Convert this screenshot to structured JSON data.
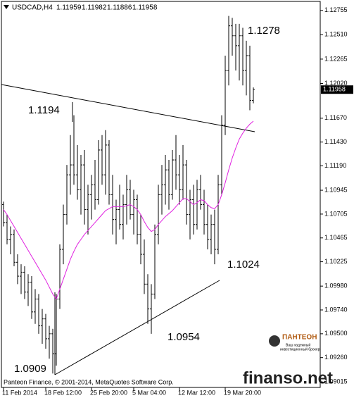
{
  "chart_data": {
    "type": "ohlc",
    "symbol": "USDCAD,H4",
    "quote": [
      1.11959,
      1.11982,
      1.11886,
      1.11958
    ],
    "current_price": 1.11958,
    "copyright": "Panteon Finance, © 2001-2014, MetaQuotes Software Corp.",
    "watermark": "finanso.net",
    "logo": {
      "name": "ПАНТЕОН",
      "tagline": [
        "Ваш надежный",
        "инвестиционный брокер"
      ]
    },
    "annotations": [
      "1.1278",
      "1.1194",
      "1.1024",
      "1.0954",
      "1.0909"
    ],
    "categories": [
      "11 Feb 2014",
      null,
      null,
      null,
      null,
      null,
      null,
      null,
      null,
      null,
      null,
      null,
      "18 Feb 12:00",
      null,
      null,
      null,
      null,
      null,
      null,
      null,
      null,
      null,
      null,
      null,
      null,
      "25 Feb 20:00",
      null,
      null,
      null,
      null,
      null,
      null,
      null,
      null,
      null,
      null,
      null,
      "5 Mar 04:00",
      null,
      null,
      null,
      null,
      null,
      null,
      null,
      null,
      null,
      null,
      null,
      null,
      "12 Mar 12:00",
      null,
      null,
      null,
      null,
      null,
      null,
      null,
      null,
      null,
      null,
      null,
      null,
      "19 Mar 20:00",
      null,
      null,
      null,
      null,
      null,
      null,
      null,
      null
    ],
    "open": [
      1.108,
      1.1062,
      1.1045,
      1.105,
      1.1022,
      1.1008,
      1.1012,
      1.0992,
      1.1002,
      1.0972,
      1.0985,
      1.0958,
      1.0965,
      1.0945,
      1.095,
      1.093,
      1.0985,
      1.1035,
      1.107,
      1.111,
      1.112,
      1.111,
      1.1095,
      1.112,
      1.1075,
      1.109,
      1.11,
      1.1085,
      1.1135,
      1.111,
      1.114,
      1.109,
      1.1065,
      1.1075,
      1.106,
      1.108,
      1.1095,
      1.107,
      1.1085,
      1.105,
      1.103,
      1.1,
      1.0975,
      1.099,
      1.105,
      1.109,
      1.11,
      1.1115,
      1.109,
      1.1125,
      1.111,
      1.1095,
      1.112,
      1.107,
      1.1085,
      1.106,
      1.1095,
      1.108,
      1.106,
      1.1045,
      1.106,
      1.1035,
      1.11,
      1.116,
      1.1215,
      1.126,
      1.125,
      1.124,
      1.125,
      1.1215,
      1.123,
      1.1185
    ],
    "high": [
      1.1083,
      1.107,
      1.1058,
      1.1055,
      1.103,
      1.102,
      1.1018,
      1.101,
      1.1008,
      1.0995,
      1.099,
      1.0975,
      1.097,
      1.0958,
      1.0955,
      1.099,
      1.104,
      1.108,
      1.112,
      1.115,
      1.117,
      1.114,
      1.113,
      1.1135,
      1.11,
      1.111,
      1.1125,
      1.1145,
      1.115,
      1.1155,
      1.1145,
      1.111,
      1.1085,
      1.11,
      1.109,
      1.111,
      1.1105,
      1.1095,
      1.109,
      1.107,
      1.1045,
      1.101,
      1.1,
      1.106,
      1.11,
      1.112,
      1.113,
      1.1125,
      1.1135,
      1.115,
      1.113,
      1.114,
      1.1125,
      1.1095,
      1.11,
      1.1105,
      1.111,
      1.1095,
      1.108,
      1.107,
      1.1075,
      1.111,
      1.117,
      1.123,
      1.127,
      1.1268,
      1.1262,
      1.1262,
      1.1258,
      1.1245,
      1.124,
      1.1198
    ],
    "low": [
      1.1058,
      1.104,
      1.103,
      1.1018,
      1.1,
      1.099,
      1.0985,
      1.0978,
      1.0965,
      1.096,
      1.095,
      1.094,
      1.0935,
      1.0925,
      1.091,
      1.0918,
      1.0975,
      1.102,
      1.106,
      1.109,
      1.11,
      1.1085,
      1.107,
      1.106,
      1.105,
      1.1065,
      1.1075,
      1.108,
      1.11,
      1.109,
      1.108,
      1.105,
      1.104,
      1.1055,
      1.1045,
      1.106,
      1.1065,
      1.105,
      1.104,
      1.102,
      1.099,
      1.096,
      1.095,
      1.0985,
      1.104,
      1.107,
      1.108,
      1.1075,
      1.1085,
      1.1095,
      1.108,
      1.1085,
      1.106,
      1.1045,
      1.105,
      1.1055,
      1.1075,
      1.105,
      1.1035,
      1.103,
      1.102,
      1.103,
      1.109,
      1.115,
      1.12,
      1.123,
      1.1215,
      1.1205,
      1.12,
      1.119,
      1.1175,
      1.1182
    ],
    "close": [
      1.1062,
      1.1045,
      1.105,
      1.1022,
      1.1008,
      1.1012,
      1.0992,
      1.1002,
      1.0972,
      1.0985,
      1.0958,
      1.0965,
      1.0945,
      1.095,
      1.093,
      1.0985,
      1.1035,
      1.107,
      1.111,
      1.112,
      1.111,
      1.1095,
      1.112,
      1.1075,
      1.109,
      1.11,
      1.1085,
      1.1135,
      1.111,
      1.114,
      1.109,
      1.1065,
      1.1075,
      1.106,
      1.108,
      1.1095,
      1.107,
      1.1085,
      1.105,
      1.103,
      1.1,
      1.0975,
      1.099,
      1.105,
      1.109,
      1.11,
      1.1115,
      1.109,
      1.1125,
      1.111,
      1.1095,
      1.112,
      1.107,
      1.1085,
      1.106,
      1.1095,
      1.108,
      1.106,
      1.1045,
      1.106,
      1.1035,
      1.11,
      1.116,
      1.1215,
      1.126,
      1.125,
      1.124,
      1.125,
      1.1215,
      1.123,
      1.1185,
      1.1196
    ],
    "color": "#000000",
    "ma_values": [
      1.1075,
      1.107,
      1.1064,
      1.1058,
      1.1052,
      1.1046,
      1.104,
      1.1034,
      1.1028,
      1.1022,
      1.1016,
      1.101,
      1.1004,
      1.0997,
      1.099,
      1.0985,
      1.0995,
      1.1005,
      1.1015,
      1.1025,
      1.1033,
      1.104,
      1.1045,
      1.105,
      1.1054,
      1.1058,
      1.1062,
      1.1066,
      1.107,
      1.1074,
      1.1076,
      1.1078,
      1.1078,
      1.1078,
      1.1078,
      1.1079,
      1.108,
      1.1078,
      1.1075,
      1.107,
      1.1063,
      1.1057,
      1.1053,
      1.1055,
      1.106,
      1.1064,
      1.1068,
      1.1071,
      1.1074,
      1.1078,
      1.1082,
      1.1086,
      1.1086,
      1.1083,
      1.108,
      1.1082,
      1.1085,
      1.1084,
      1.108,
      1.1077,
      1.1076,
      1.108,
      1.109,
      1.1102,
      1.1115,
      1.1127,
      1.1137,
      1.1146,
      1.1152,
      1.1157,
      1.1161,
      1.1164
    ],
    "ma_color": "#e020e0",
    "ylim": [
      1.0896,
      1.1286
    ],
    "yticks": [
      1.12755,
      {
        "value": 1.1251,
        "label": "1.12510"
      },
      1.12265,
      {
        "value": 1.1202,
        "label": "1.12020"
      },
      {
        "value": 1.1167,
        "label": "1.11670"
      },
      {
        "value": 1.1143,
        "label": "1.11430"
      },
      {
        "value": 1.1119,
        "label": "1.11190"
      },
      1.10945,
      1.10705,
      1.10465,
      1.10225,
      {
        "value": 1.0998,
        "label": "1.09980"
      },
      {
        "value": 1.0974,
        "label": "1.09740"
      },
      {
        "value": 1.095,
        "label": "1.09500"
      },
      {
        "value": 1.0926,
        "label": "1.09260"
      },
      1.09015
    ]
  }
}
